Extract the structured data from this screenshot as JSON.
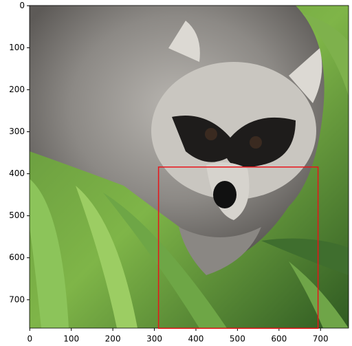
{
  "chart_data": {
    "type": "image",
    "xlim": [
      -0.5,
      767.5
    ],
    "ylim": [
      767.5,
      -0.5
    ],
    "xticks": [
      0,
      100,
      200,
      300,
      400,
      500,
      600,
      700
    ],
    "yticks": [
      0,
      100,
      200,
      300,
      400,
      500,
      600,
      700
    ],
    "rectangle": {
      "x": 310,
      "y": 384,
      "width": 384,
      "height": 384,
      "color": "#e8141a"
    }
  }
}
